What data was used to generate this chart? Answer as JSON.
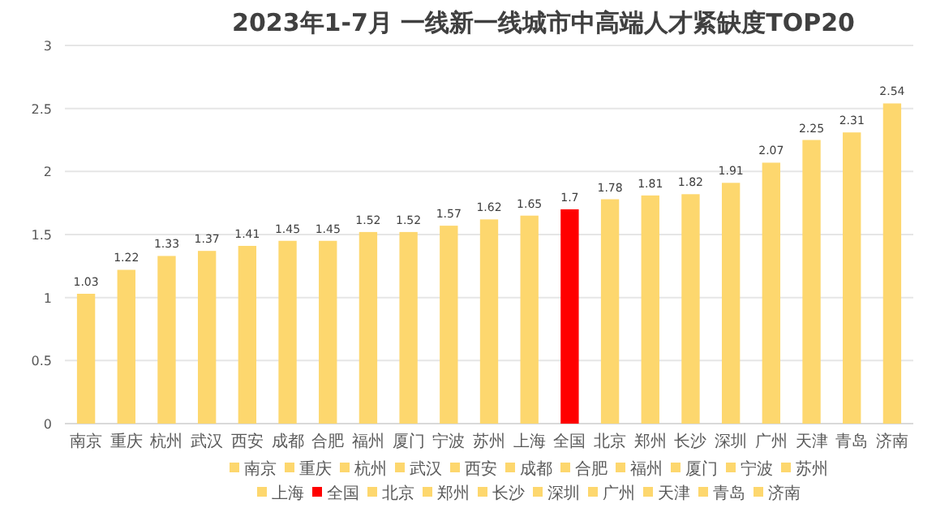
{
  "chart_data": {
    "type": "bar",
    "title": "2023年1-7月 一线新一线城市中高端人才紧缺度TOP20",
    "categories": [
      "南京",
      "重庆",
      "杭州",
      "武汉",
      "西安",
      "成都",
      "合肥",
      "福州",
      "厦门",
      "宁波",
      "苏州",
      "上海",
      "全国",
      "北京",
      "郑州",
      "长沙",
      "深圳",
      "广州",
      "天津",
      "青岛",
      "济南"
    ],
    "series": [
      {
        "name": "南京",
        "color": "#fdd76e",
        "values": [
          1.03,
          null,
          null,
          null,
          null,
          null,
          null,
          null,
          null,
          null,
          null,
          null,
          null,
          null,
          null,
          null,
          null,
          null,
          null,
          null,
          null
        ]
      },
      {
        "name": "重庆",
        "color": "#fdd76e",
        "values": [
          null,
          1.22,
          null,
          null,
          null,
          null,
          null,
          null,
          null,
          null,
          null,
          null,
          null,
          null,
          null,
          null,
          null,
          null,
          null,
          null,
          null
        ]
      },
      {
        "name": "杭州",
        "color": "#fdd76e",
        "values": [
          null,
          null,
          1.33,
          null,
          null,
          null,
          null,
          null,
          null,
          null,
          null,
          null,
          null,
          null,
          null,
          null,
          null,
          null,
          null,
          null,
          null
        ]
      },
      {
        "name": "武汉",
        "color": "#fdd76e",
        "values": [
          null,
          null,
          null,
          1.37,
          null,
          null,
          null,
          null,
          null,
          null,
          null,
          null,
          null,
          null,
          null,
          null,
          null,
          null,
          null,
          null,
          null
        ]
      },
      {
        "name": "西安",
        "color": "#fdd76e",
        "values": [
          null,
          null,
          null,
          null,
          1.41,
          null,
          null,
          null,
          null,
          null,
          null,
          null,
          null,
          null,
          null,
          null,
          null,
          null,
          null,
          null,
          null
        ]
      },
      {
        "name": "成都",
        "color": "#fdd76e",
        "values": [
          null,
          null,
          null,
          null,
          null,
          1.45,
          null,
          null,
          null,
          null,
          null,
          null,
          null,
          null,
          null,
          null,
          null,
          null,
          null,
          null,
          null
        ]
      },
      {
        "name": "合肥",
        "color": "#fdd76e",
        "values": [
          null,
          null,
          null,
          null,
          null,
          null,
          1.45,
          null,
          null,
          null,
          null,
          null,
          null,
          null,
          null,
          null,
          null,
          null,
          null,
          null,
          null
        ]
      },
      {
        "name": "福州",
        "color": "#fdd76e",
        "values": [
          null,
          null,
          null,
          null,
          null,
          null,
          null,
          1.52,
          null,
          null,
          null,
          null,
          null,
          null,
          null,
          null,
          null,
          null,
          null,
          null,
          null
        ]
      },
      {
        "name": "厦门",
        "color": "#fdd76e",
        "values": [
          null,
          null,
          null,
          null,
          null,
          null,
          null,
          null,
          1.52,
          null,
          null,
          null,
          null,
          null,
          null,
          null,
          null,
          null,
          null,
          null,
          null
        ]
      },
      {
        "name": "宁波",
        "color": "#fdd76e",
        "values": [
          null,
          null,
          null,
          null,
          null,
          null,
          null,
          null,
          null,
          1.57,
          null,
          null,
          null,
          null,
          null,
          null,
          null,
          null,
          null,
          null,
          null
        ]
      },
      {
        "name": "苏州",
        "color": "#fdd76e",
        "values": [
          null,
          null,
          null,
          null,
          null,
          null,
          null,
          null,
          null,
          null,
          1.62,
          null,
          null,
          null,
          null,
          null,
          null,
          null,
          null,
          null,
          null
        ]
      },
      {
        "name": "上海",
        "color": "#fdd76e",
        "values": [
          null,
          null,
          null,
          null,
          null,
          null,
          null,
          null,
          null,
          null,
          null,
          1.65,
          null,
          null,
          null,
          null,
          null,
          null,
          null,
          null,
          null
        ]
      },
      {
        "name": "全国",
        "color": "#ff0000",
        "values": [
          null,
          null,
          null,
          null,
          null,
          null,
          null,
          null,
          null,
          null,
          null,
          null,
          1.7,
          null,
          null,
          null,
          null,
          null,
          null,
          null,
          null
        ]
      },
      {
        "name": "北京",
        "color": "#fdd76e",
        "values": [
          null,
          null,
          null,
          null,
          null,
          null,
          null,
          null,
          null,
          null,
          null,
          null,
          null,
          1.78,
          null,
          null,
          null,
          null,
          null,
          null,
          null
        ]
      },
      {
        "name": "郑州",
        "color": "#fdd76e",
        "values": [
          null,
          null,
          null,
          null,
          null,
          null,
          null,
          null,
          null,
          null,
          null,
          null,
          null,
          null,
          1.81,
          null,
          null,
          null,
          null,
          null,
          null
        ]
      },
      {
        "name": "长沙",
        "color": "#fdd76e",
        "values": [
          null,
          null,
          null,
          null,
          null,
          null,
          null,
          null,
          null,
          null,
          null,
          null,
          null,
          null,
          null,
          1.82,
          null,
          null,
          null,
          null,
          null
        ]
      },
      {
        "name": "深圳",
        "color": "#fdd76e",
        "values": [
          null,
          null,
          null,
          null,
          null,
          null,
          null,
          null,
          null,
          null,
          null,
          null,
          null,
          null,
          null,
          null,
          1.91,
          null,
          null,
          null,
          null
        ]
      },
      {
        "name": "广州",
        "color": "#fdd76e",
        "values": [
          null,
          null,
          null,
          null,
          null,
          null,
          null,
          null,
          null,
          null,
          null,
          null,
          null,
          null,
          null,
          null,
          null,
          2.07,
          null,
          null,
          null
        ]
      },
      {
        "name": "天津",
        "color": "#fdd76e",
        "values": [
          null,
          null,
          null,
          null,
          null,
          null,
          null,
          null,
          null,
          null,
          null,
          null,
          null,
          null,
          null,
          null,
          null,
          null,
          2.25,
          null,
          null
        ]
      },
      {
        "name": "青岛",
        "color": "#fdd76e",
        "values": [
          null,
          null,
          null,
          null,
          null,
          null,
          null,
          null,
          null,
          null,
          null,
          null,
          null,
          null,
          null,
          null,
          null,
          null,
          null,
          2.31,
          null
        ]
      },
      {
        "name": "济南",
        "color": "#fdd76e",
        "values": [
          null,
          null,
          null,
          null,
          null,
          null,
          null,
          null,
          null,
          null,
          null,
          null,
          null,
          null,
          null,
          null,
          null,
          null,
          null,
          null,
          2.54
        ]
      }
    ],
    "ylim": [
      0,
      3
    ],
    "yticks": [
      0,
      0.5,
      1,
      1.5,
      2,
      2.5,
      3
    ],
    "grid": "y",
    "data_labels": true,
    "legend": "bottom"
  }
}
